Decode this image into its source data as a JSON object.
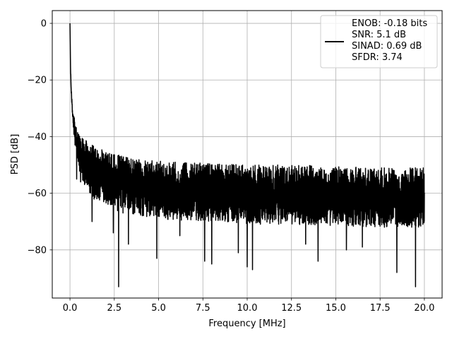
{
  "chart_data": {
    "type": "line",
    "title": "",
    "xlabel": "Frequency [MHz]",
    "ylabel": "PSD [dB]",
    "xlim": [
      -1.0,
      21.0
    ],
    "ylim": [
      -97,
      4.5
    ],
    "xticks": [
      0.0,
      2.5,
      5.0,
      7.5,
      10.0,
      12.5,
      15.0,
      17.5,
      20.0
    ],
    "xtick_labels": [
      "0.0",
      "2.5",
      "5.0",
      "7.5",
      "10.0",
      "12.5",
      "15.0",
      "17.5",
      "20.0"
    ],
    "yticks": [
      0,
      -20,
      -40,
      -60,
      -80
    ],
    "ytick_labels": [
      "0",
      "−20",
      "−40",
      "−60",
      "−80"
    ],
    "grid": true,
    "legend_position": "top-right",
    "line_color": "#000000",
    "series": [
      {
        "legend_lines": [
          "ENOB: -0.18 bits",
          "SNR: 5.1 dB",
          "SINAD: 0.69 dB",
          "SFDR: 3.74"
        ],
        "envelope": {
          "x": [
            0.0,
            0.03,
            0.06,
            0.1,
            0.15,
            0.2,
            0.3,
            0.4,
            0.5,
            0.7,
            1.0,
            1.5,
            2.0,
            2.5,
            3.0,
            4.0,
            5.0,
            6.0,
            8.0,
            10.0,
            12.5,
            15.0,
            17.5,
            20.0
          ],
          "upper": [
            0.0,
            -14,
            -21,
            -26,
            -30,
            -32,
            -35,
            -37,
            -38.5,
            -40,
            -42,
            -44,
            -45,
            -46,
            -47,
            -48,
            -48.5,
            -49,
            -49.5,
            -50,
            -50,
            -50.5,
            -51,
            -51
          ],
          "lower": [
            0.0,
            -16,
            -24,
            -29,
            -34,
            -38,
            -44,
            -49,
            -52,
            -56,
            -60,
            -63,
            -65,
            -66,
            -67,
            -68,
            -69,
            -69.5,
            -70,
            -71,
            -71,
            -71.5,
            -72,
            -72
          ]
        },
        "dips": [
          {
            "x": 0.38,
            "y": -55
          },
          {
            "x": 0.6,
            "y": -56
          },
          {
            "x": 1.25,
            "y": -70
          },
          {
            "x": 2.45,
            "y": -74
          },
          {
            "x": 2.75,
            "y": -93
          },
          {
            "x": 3.3,
            "y": -78
          },
          {
            "x": 4.9,
            "y": -83
          },
          {
            "x": 6.2,
            "y": -75
          },
          {
            "x": 7.6,
            "y": -84
          },
          {
            "x": 8.0,
            "y": -85
          },
          {
            "x": 9.5,
            "y": -81
          },
          {
            "x": 10.0,
            "y": -86
          },
          {
            "x": 10.3,
            "y": -87
          },
          {
            "x": 13.3,
            "y": -78
          },
          {
            "x": 14.0,
            "y": -84
          },
          {
            "x": 15.6,
            "y": -80
          },
          {
            "x": 16.5,
            "y": -79
          },
          {
            "x": 18.45,
            "y": -88
          },
          {
            "x": 19.5,
            "y": -93
          }
        ]
      }
    ]
  }
}
